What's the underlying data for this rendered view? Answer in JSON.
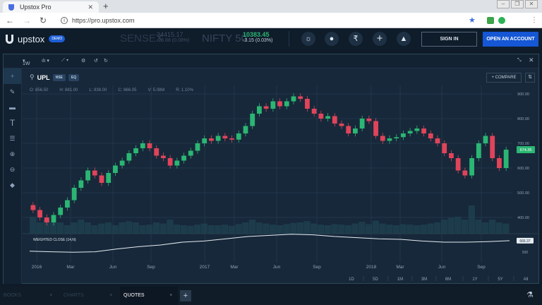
{
  "browser": {
    "tab_title": "Upstox Pro",
    "url": "https://pro.upstox.com"
  },
  "header": {
    "logo": "upstox",
    "demo_badge": "DEMO",
    "tickers": [
      {
        "name": "SENSEX",
        "price": "34415.17",
        "change": "-26.88 (0.08%)"
      },
      {
        "name": "NIFTY 50",
        "price": "10383.45",
        "change": "-3.15 (0.03%)"
      }
    ],
    "icons": [
      "sun-icon",
      "user-icon",
      "rupee-icon",
      "plus-icon",
      "bell-icon"
    ],
    "sign_in": "SIGN IN",
    "open_account": "OPEN AN ACCOUNT"
  },
  "toolbar": {
    "interval": "1W",
    "chart_type": "candles",
    "indicators": "indicators"
  },
  "symbol": {
    "name": "UPL",
    "exchange": "NSE",
    "segment": "EQ",
    "ohlc": {
      "o": "O: 856.50",
      "h": "H: 881.00",
      "l": "L: 838.00",
      "c": "C: 866.05",
      "v": "V: 5.08M",
      "r": "R: 1.10%"
    },
    "compare": "COMPARE"
  },
  "colors": {
    "up": "#2bb673",
    "down": "#e0445a",
    "accent": "#1557d4",
    "bg": "#17283a"
  },
  "chart_data": {
    "type": "candlestick",
    "interval": "1W",
    "x_tick_labels": [
      "2016",
      "Mar",
      "Jun",
      "Sep",
      "2017",
      "Mar",
      "Jun",
      "Sep",
      "2018",
      "Mar",
      "Jun",
      "Sep"
    ],
    "y_tick_labels": [
      "900.00",
      "800.00",
      "700.00",
      "600.00",
      "500.00",
      "400.00"
    ],
    "ylim": [
      330,
      930
    ],
    "last_price": "674.35",
    "closes": [
      430,
      400,
      380,
      410,
      440,
      470,
      520,
      550,
      590,
      570,
      540,
      580,
      610,
      630,
      660,
      680,
      700,
      680,
      650,
      640,
      610,
      630,
      650,
      670,
      700,
      720,
      710,
      730,
      720,
      715,
      740,
      770,
      820,
      850,
      840,
      870,
      850,
      870,
      890,
      880,
      840,
      820,
      800,
      810,
      780,
      770,
      740,
      760,
      800,
      790,
      730,
      710,
      720,
      725,
      740,
      750,
      760,
      740,
      720,
      700,
      660,
      640,
      590,
      570,
      640,
      700,
      730,
      640,
      600,
      674.35
    ],
    "volume_m": [
      3,
      2,
      2.5,
      2,
      2,
      1.5,
      2,
      2.5,
      2,
      1.5,
      1.8,
      2,
      1.5,
      2,
      2.2,
      2,
      1.5,
      1.6,
      2,
      1.8,
      2.5,
      1.6,
      1.5,
      1.4,
      1.6,
      1.8,
      1.5,
      1.5,
      1.6,
      1.4,
      1.7,
      2,
      2.5,
      2,
      1.8,
      1.6,
      1.5,
      1.7,
      1.9,
      2,
      2.2,
      1.8,
      1.6,
      1.5,
      1.7,
      1.6,
      1.5,
      1.8,
      2.1,
      1.7,
      2.3,
      1.8,
      1.6,
      1.5,
      1.7,
      1.6,
      1.5,
      1.6,
      1.8,
      2,
      2.5,
      2.8,
      3,
      2.5,
      5,
      2.5,
      2,
      2.5,
      2,
      1.8
    ],
    "indicator": {
      "name": "WEIGHTED CLOSE (14,N)",
      "last": "666.37",
      "axis_label": "500",
      "values": [
        480,
        470,
        462,
        470,
        520,
        560,
        590,
        640,
        660,
        700,
        740,
        760,
        780,
        770,
        740,
        720,
        700,
        690,
        660,
        640,
        640,
        650,
        666
      ]
    },
    "ranges": [
      "1D",
      "5D",
      "1M",
      "3M",
      "6M",
      "1Y",
      "5Y",
      "All"
    ]
  },
  "bottom_tabs": [
    {
      "label": "BOOKS"
    },
    {
      "label": "CHARTS"
    },
    {
      "label": "QUOTES",
      "active": true
    }
  ]
}
